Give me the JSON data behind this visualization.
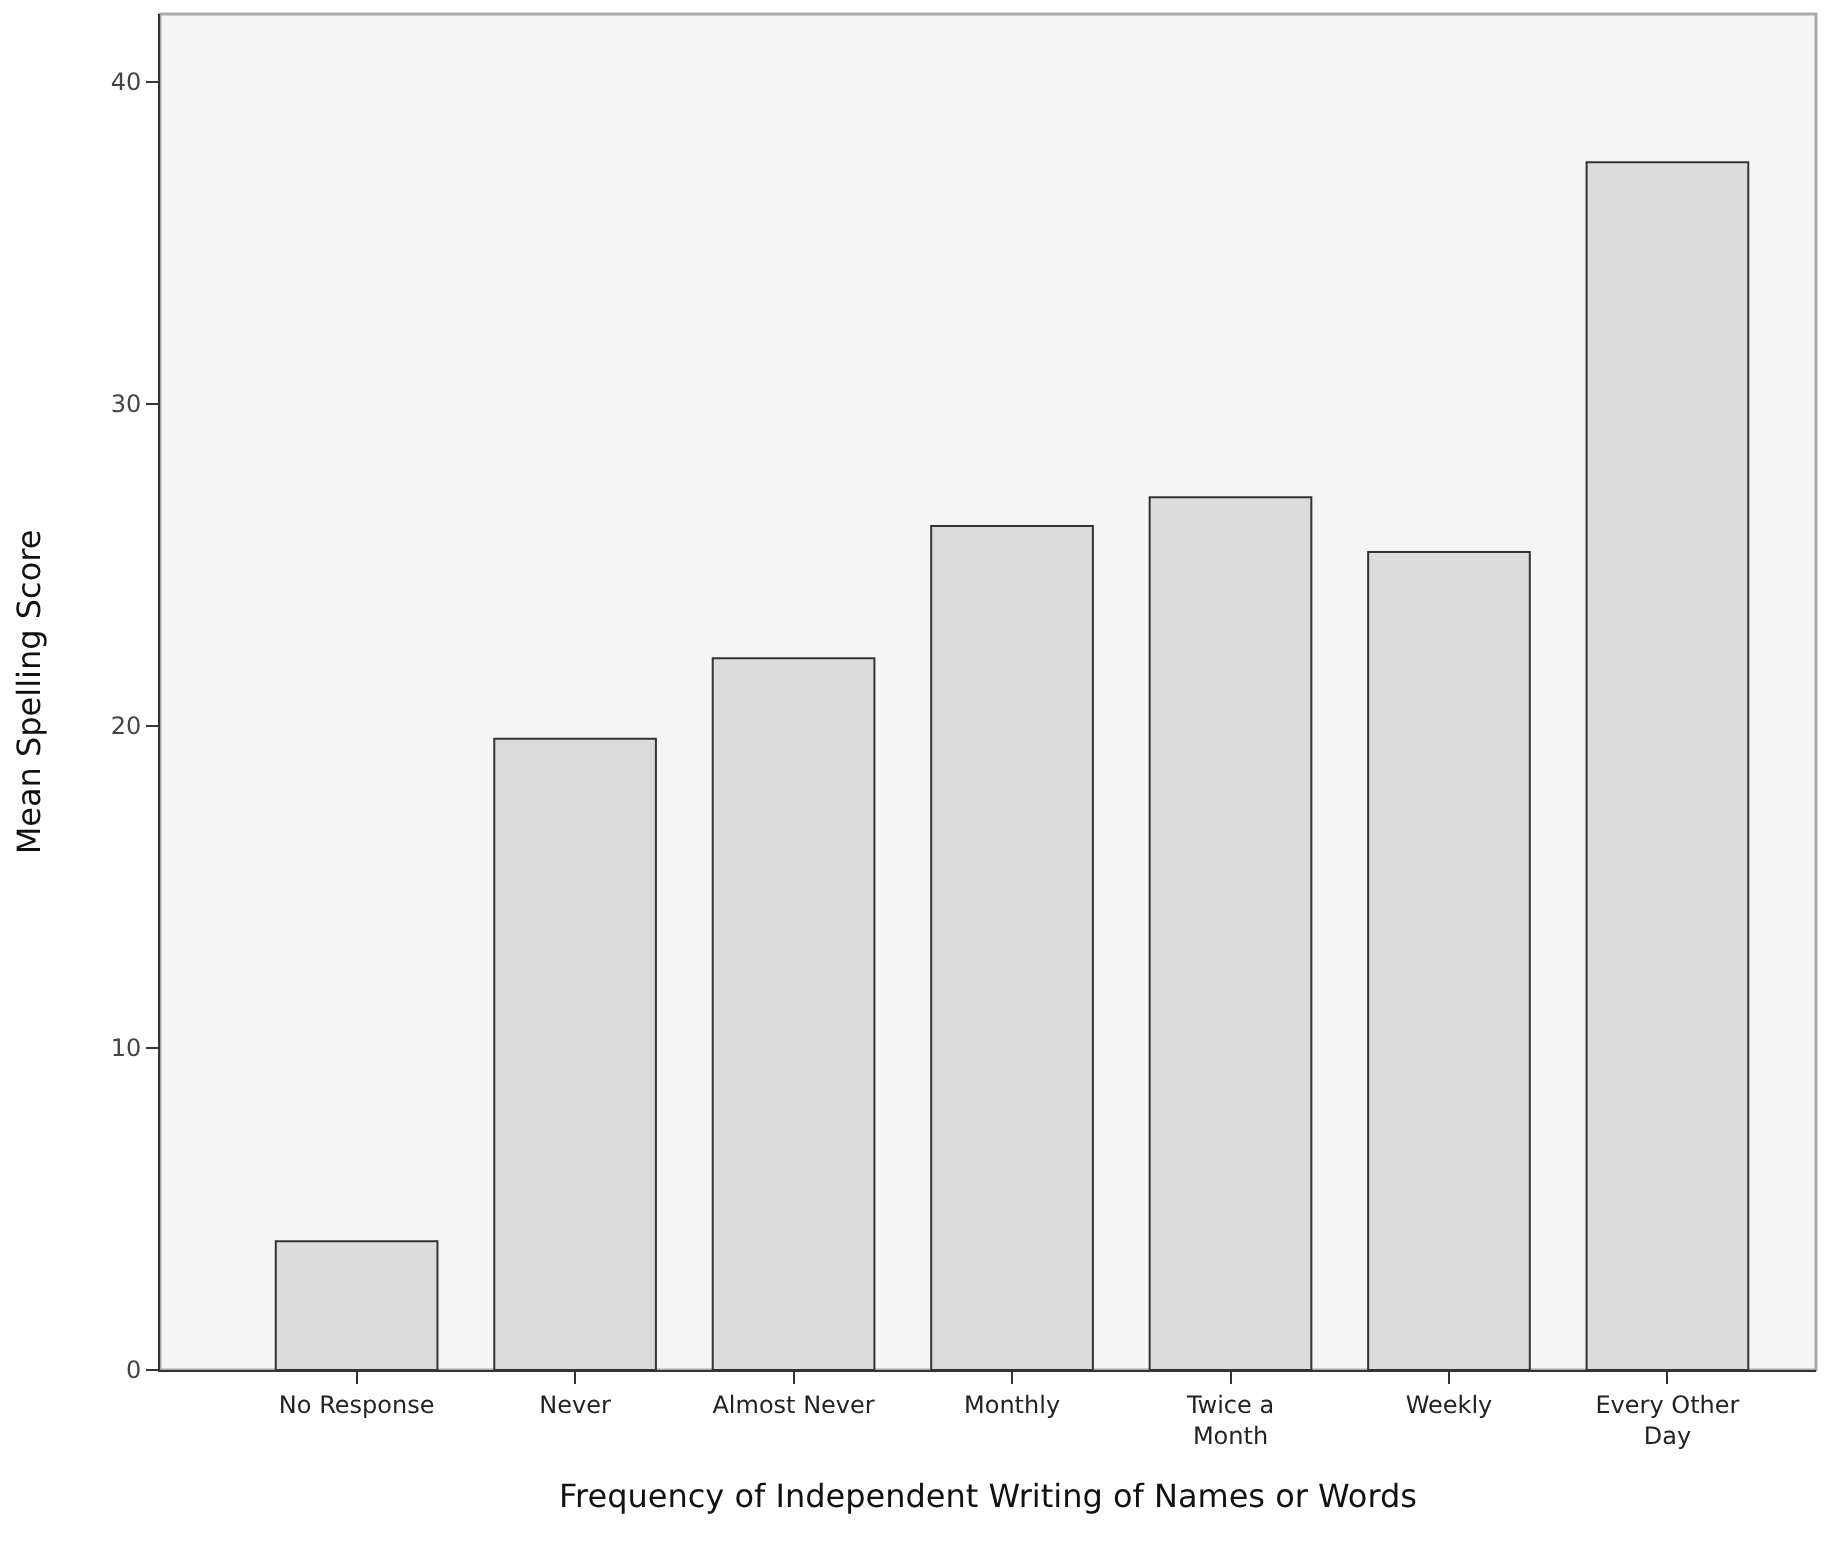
{
  "chart_data": {
    "type": "bar",
    "xlabel": "Frequency of Independent Writing of Names or Words",
    "ylabel": "Mean Spelling Score",
    "categories": [
      "No Response",
      "Never",
      "Almost Never",
      "Monthly",
      "Twice a\nMonth",
      "Weekly",
      "Every Other\nDay"
    ],
    "values": [
      4.0,
      19.6,
      22.1,
      26.2,
      27.1,
      25.4,
      37.5
    ],
    "color": "#dcdcdc",
    "ylim": [
      0,
      42.1
    ],
    "yticks": [
      0,
      10,
      20,
      30,
      40
    ],
    "grid": false
  }
}
